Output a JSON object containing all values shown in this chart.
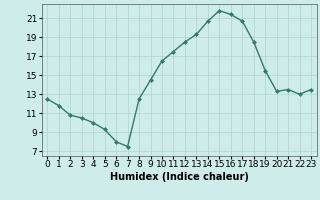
{
  "x": [
    0,
    1,
    2,
    3,
    4,
    5,
    6,
    7,
    8,
    9,
    10,
    11,
    12,
    13,
    14,
    15,
    16,
    17,
    18,
    19,
    20,
    21,
    22,
    23
  ],
  "y": [
    12.5,
    11.8,
    10.8,
    10.5,
    10.0,
    9.3,
    8.0,
    7.5,
    12.5,
    14.5,
    16.5,
    17.5,
    18.5,
    19.3,
    20.7,
    21.8,
    21.4,
    20.7,
    18.5,
    15.5,
    13.3,
    13.5,
    13.0,
    13.5
  ],
  "xlabel": "Humidex (Indice chaleur)",
  "xlim": [
    -0.5,
    23.5
  ],
  "ylim": [
    6.5,
    22.5
  ],
  "yticks": [
    7,
    9,
    11,
    13,
    15,
    17,
    19,
    21
  ],
  "line_color": "#2e7d6e",
  "marker": "D",
  "marker_size": 2.0,
  "bg_color": "#cdecea",
  "grid_color": "#b0d4d0",
  "fig_bg": "#cdecea",
  "axis_fontsize": 7,
  "tick_fontsize": 6.5,
  "line_width": 1.0
}
